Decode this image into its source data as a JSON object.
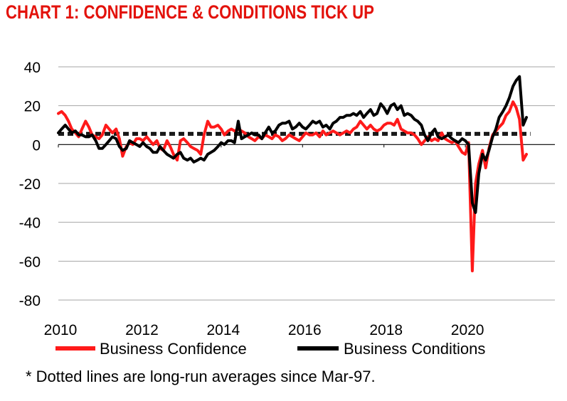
{
  "title": "CHART 1: CONFIDENCE & CONDITIONS TICK UP",
  "footnote": "* Dotted lines are long-run averages since Mar-97.",
  "colors": {
    "title": "#e3120b",
    "confidence": "#ff1a1a",
    "conditions": "#000000",
    "grid": "#a6a6a6"
  },
  "chart_data": {
    "type": "line",
    "title": "CHART 1: CONFIDENCE & CONDITIONS TICK UP",
    "xlabel": "",
    "ylabel": "",
    "xlim": [
      2010.0,
      2022.2
    ],
    "ylim": [
      -80,
      40
    ],
    "y_ticks": [
      40,
      20,
      0,
      -20,
      -40,
      -60,
      -80
    ],
    "x_ticks": [
      2010,
      2012,
      2014,
      2016,
      2018,
      2020
    ],
    "grid": "horizontal",
    "legend_position": "bottom",
    "series": [
      {
        "name": "Business Confidence",
        "color": "#ff1a1a",
        "points": [
          [
            2010.0,
            16
          ],
          [
            2010.08,
            17
          ],
          [
            2010.17,
            15
          ],
          [
            2010.25,
            12
          ],
          [
            2010.33,
            8
          ],
          [
            2010.42,
            6
          ],
          [
            2010.5,
            4
          ],
          [
            2010.58,
            8
          ],
          [
            2010.67,
            12
          ],
          [
            2010.75,
            9
          ],
          [
            2010.83,
            5
          ],
          [
            2010.92,
            4
          ],
          [
            2011.0,
            3
          ],
          [
            2011.08,
            5
          ],
          [
            2011.17,
            10
          ],
          [
            2011.25,
            8
          ],
          [
            2011.33,
            6
          ],
          [
            2011.42,
            8
          ],
          [
            2011.5,
            3
          ],
          [
            2011.58,
            -6
          ],
          [
            2011.67,
            -1
          ],
          [
            2011.75,
            1
          ],
          [
            2011.83,
            0
          ],
          [
            2011.92,
            3
          ],
          [
            2012.0,
            3
          ],
          [
            2012.08,
            2
          ],
          [
            2012.17,
            4
          ],
          [
            2012.25,
            2
          ],
          [
            2012.33,
            0
          ],
          [
            2012.42,
            2
          ],
          [
            2012.5,
            -2
          ],
          [
            2012.58,
            -3
          ],
          [
            2012.67,
            2
          ],
          [
            2012.75,
            -1
          ],
          [
            2012.83,
            -5
          ],
          [
            2012.92,
            -8
          ],
          [
            2013.0,
            2
          ],
          [
            2013.08,
            3
          ],
          [
            2013.17,
            1
          ],
          [
            2013.25,
            -1
          ],
          [
            2013.33,
            -2
          ],
          [
            2013.42,
            -3
          ],
          [
            2013.5,
            -5
          ],
          [
            2013.58,
            5
          ],
          [
            2013.67,
            12
          ],
          [
            2013.75,
            9
          ],
          [
            2013.83,
            9
          ],
          [
            2013.92,
            10
          ],
          [
            2014.0,
            8
          ],
          [
            2014.08,
            5
          ],
          [
            2014.17,
            7
          ],
          [
            2014.25,
            8
          ],
          [
            2014.33,
            7
          ],
          [
            2014.42,
            8
          ],
          [
            2014.5,
            7
          ],
          [
            2014.58,
            6
          ],
          [
            2014.67,
            4
          ],
          [
            2014.75,
            3
          ],
          [
            2014.83,
            2
          ],
          [
            2014.92,
            4
          ],
          [
            2015.0,
            3
          ],
          [
            2015.08,
            5
          ],
          [
            2015.17,
            4
          ],
          [
            2015.25,
            3
          ],
          [
            2015.33,
            5
          ],
          [
            2015.42,
            4
          ],
          [
            2015.5,
            2
          ],
          [
            2015.58,
            3
          ],
          [
            2015.67,
            5
          ],
          [
            2015.75,
            4
          ],
          [
            2015.83,
            3
          ],
          [
            2015.92,
            2
          ],
          [
            2016.0,
            4
          ],
          [
            2016.08,
            6
          ],
          [
            2016.17,
            5
          ],
          [
            2016.25,
            5
          ],
          [
            2016.33,
            6
          ],
          [
            2016.42,
            4
          ],
          [
            2016.5,
            7
          ],
          [
            2016.58,
            5
          ],
          [
            2016.67,
            6
          ],
          [
            2016.75,
            7
          ],
          [
            2016.83,
            6
          ],
          [
            2016.92,
            5
          ],
          [
            2017.0,
            6
          ],
          [
            2017.08,
            7
          ],
          [
            2017.17,
            6
          ],
          [
            2017.25,
            8
          ],
          [
            2017.33,
            9
          ],
          [
            2017.42,
            12
          ],
          [
            2017.5,
            10
          ],
          [
            2017.58,
            8
          ],
          [
            2017.67,
            10
          ],
          [
            2017.75,
            8
          ],
          [
            2017.83,
            7
          ],
          [
            2017.92,
            8
          ],
          [
            2018.0,
            10
          ],
          [
            2018.08,
            11
          ],
          [
            2018.17,
            11
          ],
          [
            2018.25,
            10
          ],
          [
            2018.33,
            13
          ],
          [
            2018.42,
            8
          ],
          [
            2018.5,
            7
          ],
          [
            2018.58,
            6
          ],
          [
            2018.67,
            6
          ],
          [
            2018.75,
            5
          ],
          [
            2018.83,
            3
          ],
          [
            2018.92,
            0
          ],
          [
            2019.0,
            2
          ],
          [
            2019.08,
            4
          ],
          [
            2019.17,
            2
          ],
          [
            2019.25,
            3
          ],
          [
            2019.33,
            2
          ],
          [
            2019.42,
            6
          ],
          [
            2019.5,
            3
          ],
          [
            2019.58,
            2
          ],
          [
            2019.67,
            1
          ],
          [
            2019.75,
            2
          ],
          [
            2019.83,
            -1
          ],
          [
            2019.92,
            -4
          ],
          [
            2020.0,
            -5
          ],
          [
            2020.08,
            1
          ],
          [
            2020.17,
            -65
          ],
          [
            2020.25,
            -20
          ],
          [
            2020.33,
            -10
          ],
          [
            2020.42,
            -3
          ],
          [
            2020.5,
            -12
          ],
          [
            2020.58,
            -2
          ],
          [
            2020.67,
            5
          ],
          [
            2020.75,
            7
          ],
          [
            2020.83,
            9
          ],
          [
            2020.92,
            11
          ],
          [
            2021.0,
            15
          ],
          [
            2021.08,
            17
          ],
          [
            2021.17,
            22
          ],
          [
            2021.25,
            19
          ],
          [
            2021.33,
            13
          ],
          [
            2021.42,
            -8
          ],
          [
            2021.5,
            -5
          ]
        ]
      },
      {
        "name": "Business Conditions",
        "color": "#000000",
        "points": [
          [
            2010.0,
            6
          ],
          [
            2010.08,
            8
          ],
          [
            2010.17,
            10
          ],
          [
            2010.25,
            8
          ],
          [
            2010.33,
            6
          ],
          [
            2010.42,
            7
          ],
          [
            2010.5,
            5
          ],
          [
            2010.58,
            5
          ],
          [
            2010.67,
            4
          ],
          [
            2010.75,
            4
          ],
          [
            2010.83,
            5
          ],
          [
            2010.92,
            2
          ],
          [
            2011.0,
            -2
          ],
          [
            2011.08,
            -2
          ],
          [
            2011.17,
            0
          ],
          [
            2011.25,
            2
          ],
          [
            2011.33,
            4
          ],
          [
            2011.42,
            3
          ],
          [
            2011.5,
            -1
          ],
          [
            2011.58,
            -3
          ],
          [
            2011.67,
            -2
          ],
          [
            2011.75,
            2
          ],
          [
            2011.83,
            1
          ],
          [
            2011.92,
            0
          ],
          [
            2012.0,
            -1
          ],
          [
            2012.08,
            1
          ],
          [
            2012.17,
            -1
          ],
          [
            2012.25,
            -2
          ],
          [
            2012.33,
            -4
          ],
          [
            2012.42,
            -4
          ],
          [
            2012.5,
            -1
          ],
          [
            2012.58,
            -3
          ],
          [
            2012.67,
            -5
          ],
          [
            2012.75,
            -6
          ],
          [
            2012.83,
            -7
          ],
          [
            2012.92,
            -5
          ],
          [
            2013.0,
            -4
          ],
          [
            2013.08,
            -7
          ],
          [
            2013.17,
            -8
          ],
          [
            2013.25,
            -7
          ],
          [
            2013.33,
            -9
          ],
          [
            2013.42,
            -8
          ],
          [
            2013.5,
            -7
          ],
          [
            2013.58,
            -8
          ],
          [
            2013.67,
            -5
          ],
          [
            2013.75,
            -4
          ],
          [
            2013.83,
            -3
          ],
          [
            2013.92,
            -1
          ],
          [
            2014.0,
            1
          ],
          [
            2014.08,
            0
          ],
          [
            2014.17,
            2
          ],
          [
            2014.25,
            2
          ],
          [
            2014.33,
            1
          ],
          [
            2014.42,
            12
          ],
          [
            2014.5,
            3
          ],
          [
            2014.58,
            4
          ],
          [
            2014.67,
            5
          ],
          [
            2014.75,
            6
          ],
          [
            2014.83,
            5
          ],
          [
            2014.92,
            5
          ],
          [
            2015.0,
            3
          ],
          [
            2015.08,
            6
          ],
          [
            2015.17,
            9
          ],
          [
            2015.25,
            6
          ],
          [
            2015.33,
            7
          ],
          [
            2015.42,
            10
          ],
          [
            2015.5,
            11
          ],
          [
            2015.58,
            11
          ],
          [
            2015.67,
            12
          ],
          [
            2015.75,
            8
          ],
          [
            2015.83,
            9
          ],
          [
            2015.92,
            11
          ],
          [
            2016.0,
            9
          ],
          [
            2016.08,
            8
          ],
          [
            2016.17,
            10
          ],
          [
            2016.25,
            12
          ],
          [
            2016.33,
            11
          ],
          [
            2016.42,
            12
          ],
          [
            2016.5,
            9
          ],
          [
            2016.58,
            10
          ],
          [
            2016.67,
            8
          ],
          [
            2016.75,
            11
          ],
          [
            2016.83,
            12
          ],
          [
            2016.92,
            14
          ],
          [
            2017.0,
            14
          ],
          [
            2017.08,
            15
          ],
          [
            2017.17,
            15
          ],
          [
            2017.25,
            16
          ],
          [
            2017.33,
            15
          ],
          [
            2017.42,
            17
          ],
          [
            2017.5,
            14
          ],
          [
            2017.58,
            16
          ],
          [
            2017.67,
            18
          ],
          [
            2017.75,
            15
          ],
          [
            2017.83,
            16
          ],
          [
            2017.92,
            21
          ],
          [
            2018.0,
            19
          ],
          [
            2018.08,
            16
          ],
          [
            2018.17,
            20
          ],
          [
            2018.25,
            21
          ],
          [
            2018.33,
            18
          ],
          [
            2018.42,
            20
          ],
          [
            2018.5,
            15
          ],
          [
            2018.58,
            16
          ],
          [
            2018.67,
            15
          ],
          [
            2018.75,
            13
          ],
          [
            2018.83,
            12
          ],
          [
            2018.92,
            10
          ],
          [
            2019.0,
            5
          ],
          [
            2019.08,
            2
          ],
          [
            2019.17,
            6
          ],
          [
            2019.25,
            8
          ],
          [
            2019.33,
            4
          ],
          [
            2019.42,
            3
          ],
          [
            2019.5,
            4
          ],
          [
            2019.58,
            5
          ],
          [
            2019.67,
            3
          ],
          [
            2019.75,
            2
          ],
          [
            2019.83,
            1
          ],
          [
            2019.92,
            3
          ],
          [
            2020.0,
            2
          ],
          [
            2020.08,
            0
          ],
          [
            2020.17,
            -30
          ],
          [
            2020.25,
            -35
          ],
          [
            2020.33,
            -15
          ],
          [
            2020.42,
            -5
          ],
          [
            2020.5,
            -8
          ],
          [
            2020.58,
            -3
          ],
          [
            2020.67,
            4
          ],
          [
            2020.75,
            8
          ],
          [
            2020.83,
            14
          ],
          [
            2020.92,
            17
          ],
          [
            2021.0,
            20
          ],
          [
            2021.08,
            24
          ],
          [
            2021.17,
            30
          ],
          [
            2021.25,
            33
          ],
          [
            2021.33,
            35
          ],
          [
            2021.42,
            10
          ],
          [
            2021.5,
            14
          ]
        ]
      }
    ],
    "reference_lines": [
      {
        "name": "Business Confidence long-run average",
        "y": 6,
        "style": "dashed",
        "x_range": [
          2010.0,
          2021.6
        ]
      },
      {
        "name": "Business Conditions long-run average",
        "y": 5,
        "style": "dashed",
        "x_range": [
          2010.0,
          2021.6
        ]
      }
    ],
    "annotations": [
      "* Dotted lines are long-run averages since Mar-97."
    ]
  }
}
